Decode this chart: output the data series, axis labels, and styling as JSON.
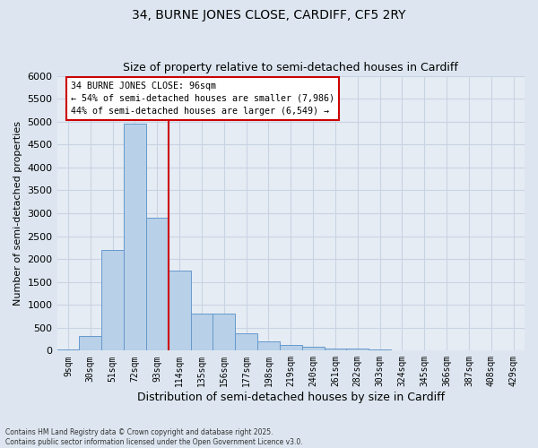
{
  "title1": "34, BURNE JONES CLOSE, CARDIFF, CF5 2RY",
  "title2": "Size of property relative to semi-detached houses in Cardiff",
  "xlabel": "Distribution of semi-detached houses by size in Cardiff",
  "ylabel": "Number of semi-detached properties",
  "categories": [
    "9sqm",
    "30sqm",
    "51sqm",
    "72sqm",
    "93sqm",
    "114sqm",
    "135sqm",
    "156sqm",
    "177sqm",
    "198sqm",
    "219sqm",
    "240sqm",
    "261sqm",
    "282sqm",
    "303sqm",
    "324sqm",
    "345sqm",
    "366sqm",
    "387sqm",
    "408sqm",
    "429sqm"
  ],
  "values": [
    25,
    310,
    2200,
    4950,
    2900,
    1750,
    800,
    800,
    380,
    200,
    130,
    80,
    50,
    40,
    25,
    15,
    10,
    5,
    5,
    2,
    2
  ],
  "bar_color": "#b8d0e8",
  "bar_edge_color": "#6699cc",
  "vline_x": 4.5,
  "vline_color": "#cc0000",
  "annotation_title": "34 BURNE JONES CLOSE: 96sqm",
  "annotation_line1": "← 54% of semi-detached houses are smaller (7,986)",
  "annotation_line2": "44% of semi-detached houses are larger (6,549) →",
  "annotation_box_edgecolor": "#cc0000",
  "ylim": [
    0,
    6000
  ],
  "yticks": [
    0,
    500,
    1000,
    1500,
    2000,
    2500,
    3000,
    3500,
    4000,
    4500,
    5000,
    5500,
    6000
  ],
  "footer1": "Contains HM Land Registry data © Crown copyright and database right 2025.",
  "footer2": "Contains public sector information licensed under the Open Government Licence v3.0.",
  "fig_bg_color": "#dde6f0",
  "plot_bg_color": "#e6ecf4",
  "grid_color": "#c8d4e2"
}
